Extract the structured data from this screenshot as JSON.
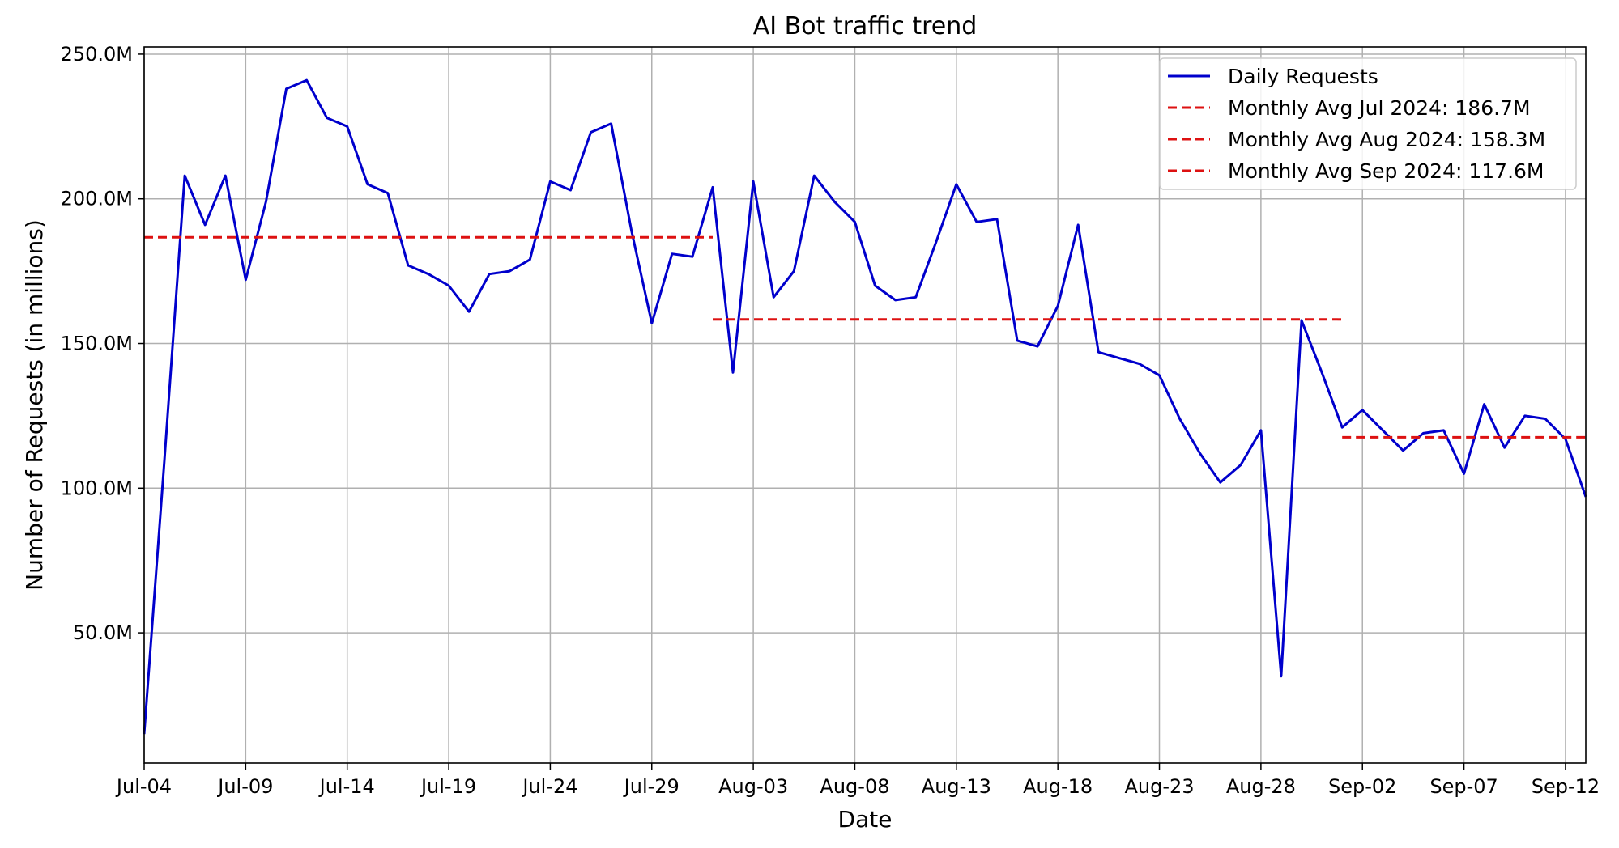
{
  "chart_data": {
    "type": "line",
    "title": "AI Bot traffic trend",
    "xlabel": "Date",
    "ylabel": "Number of Requests (in millions)",
    "x_ticks": [
      "Jul-04",
      "Jul-09",
      "Jul-14",
      "Jul-19",
      "Jul-24",
      "Jul-29",
      "Aug-03",
      "Aug-08",
      "Aug-13",
      "Aug-18",
      "Aug-23",
      "Aug-28",
      "Sep-02",
      "Sep-07",
      "Sep-12"
    ],
    "y_ticks": [
      "50.0M",
      "100.0M",
      "150.0M",
      "200.0M",
      "250.0M"
    ],
    "y_tick_values": [
      50,
      100,
      150,
      200,
      250
    ],
    "ylim": [
      5,
      252.5
    ],
    "xlim": [
      "2024-07-04",
      "2024-09-13"
    ],
    "grid": true,
    "legend_position": "top-right",
    "series": [
      {
        "name": "Daily Requests",
        "color": "#0000cc",
        "style": "solid",
        "x": [
          "2024-07-04",
          "2024-07-05",
          "2024-07-06",
          "2024-07-07",
          "2024-07-08",
          "2024-07-09",
          "2024-07-10",
          "2024-07-11",
          "2024-07-12",
          "2024-07-13",
          "2024-07-14",
          "2024-07-15",
          "2024-07-16",
          "2024-07-17",
          "2024-07-18",
          "2024-07-19",
          "2024-07-20",
          "2024-07-21",
          "2024-07-22",
          "2024-07-23",
          "2024-07-24",
          "2024-07-25",
          "2024-07-26",
          "2024-07-27",
          "2024-07-28",
          "2024-07-29",
          "2024-07-30",
          "2024-07-31",
          "2024-08-01",
          "2024-08-02",
          "2024-08-03",
          "2024-08-04",
          "2024-08-05",
          "2024-08-06",
          "2024-08-07",
          "2024-08-08",
          "2024-08-09",
          "2024-08-10",
          "2024-08-11",
          "2024-08-12",
          "2024-08-13",
          "2024-08-14",
          "2024-08-15",
          "2024-08-16",
          "2024-08-17",
          "2024-08-18",
          "2024-08-19",
          "2024-08-20",
          "2024-08-21",
          "2024-08-22",
          "2024-08-23",
          "2024-08-24",
          "2024-08-25",
          "2024-08-26",
          "2024-08-27",
          "2024-08-28",
          "2024-08-29",
          "2024-08-30",
          "2024-08-31",
          "2024-09-01",
          "2024-09-02",
          "2024-09-03",
          "2024-09-04",
          "2024-09-05",
          "2024-09-06",
          "2024-09-07",
          "2024-09-08",
          "2024-09-09",
          "2024-09-10",
          "2024-09-11",
          "2024-09-12",
          "2024-09-13"
        ],
        "values": [
          15,
          110,
          208,
          191,
          208,
          172,
          199,
          238,
          241,
          228,
          225,
          205,
          202,
          177,
          174,
          170,
          161,
          174,
          175,
          179,
          206,
          203,
          223,
          226,
          189,
          157,
          181,
          180,
          204,
          140,
          206,
          166,
          175,
          208,
          199,
          192,
          170,
          165,
          166,
          185,
          205,
          192,
          193,
          151,
          149,
          163,
          191,
          147,
          145,
          143,
          139,
          124,
          112,
          102,
          108,
          120,
          35,
          158,
          140,
          121,
          127,
          120,
          113,
          119,
          120,
          105,
          129,
          114,
          125,
          124,
          117,
          97
        ]
      },
      {
        "name": "Monthly Avg Jul 2024: 186.7M",
        "color": "#dd1111",
        "style": "dashed",
        "x": [
          "2024-07-04",
          "2024-08-01"
        ],
        "values": [
          186.7,
          186.7
        ]
      },
      {
        "name": "Monthly Avg Aug 2024: 158.3M",
        "color": "#dd1111",
        "style": "dashed",
        "x": [
          "2024-08-01",
          "2024-09-01"
        ],
        "values": [
          158.3,
          158.3
        ]
      },
      {
        "name": "Monthly Avg Sep 2024: 117.6M",
        "color": "#dd1111",
        "style": "dashed",
        "x": [
          "2024-09-01",
          "2024-09-13"
        ],
        "values": [
          117.6,
          117.6
        ]
      }
    ]
  }
}
